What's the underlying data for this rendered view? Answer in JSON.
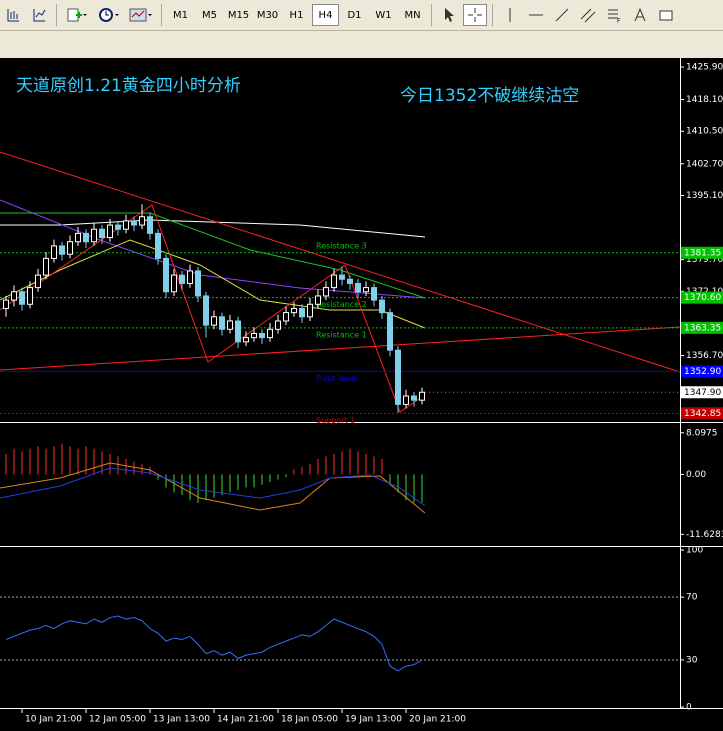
{
  "toolbar": {
    "timeframes": [
      "M1",
      "M5",
      "M15",
      "M30",
      "H1",
      "H4",
      "D1",
      "W1",
      "MN"
    ],
    "active": "H4"
  },
  "annotations": [
    {
      "text": "天道原创1.21黄金四小时分析"
    },
    {
      "text": "今日1352不破继续沽空"
    }
  ],
  "chart_data": {
    "type": "candlestick",
    "bull_color": "#ffffff",
    "bear_color": "#7fd0e8",
    "ylim": [
      1341.25,
      1428.06
    ],
    "yticks": [
      {
        "value": 1425.9,
        "label": "1425.90"
      },
      {
        "value": 1418.1,
        "label": "1418.10"
      },
      {
        "value": 1410.5,
        "label": "1410.50"
      },
      {
        "value": 1402.7,
        "label": "1402.70"
      },
      {
        "value": 1395.1,
        "label": "1395.10"
      },
      {
        "value": 1379.7,
        "label": "1379.70"
      },
      {
        "value": 1372.1,
        "label": "1372.10"
      },
      {
        "value": 1356.7,
        "label": "1356.70"
      }
    ],
    "levels": [
      {
        "name": "Resistance 3",
        "value": 1381.35,
        "label": "1381.35",
        "color": "#00c000",
        "dashed": true
      },
      {
        "name": "Resistance 2",
        "value": 1370.6,
        "label": "1370.60",
        "color": "#00c000",
        "dashed": true
      },
      {
        "name": "Resistance 1",
        "value": 1363.35,
        "label": "1363.35",
        "color": "#00c000",
        "dashed": true
      },
      {
        "name": "Pivot level",
        "value": 1352.9,
        "label": "1352.90",
        "color": "#0000ff",
        "dashed": false
      },
      {
        "name": "Support 1",
        "value": 1342.85,
        "label": "1342.85",
        "color": "#c00000",
        "dashed": true
      }
    ],
    "current_price": {
      "value": 1347.9,
      "label": "1347.90"
    },
    "categories": [
      null,
      null,
      "10 Jan 21:00",
      null,
      null,
      null,
      null,
      null,
      null,
      null,
      "12 Jan 05:00",
      null,
      null,
      null,
      null,
      null,
      null,
      null,
      "13 Jan 13:00",
      null,
      null,
      null,
      null,
      null,
      null,
      null,
      "14 Jan 21:00",
      null,
      null,
      null,
      null,
      null,
      null,
      null,
      "18 Jan 05:00",
      null,
      null,
      null,
      null,
      null,
      null,
      null,
      "19 Jan 13:00",
      null,
      null,
      null,
      null,
      null,
      null,
      null,
      "20 Jan 21:00",
      null,
      null
    ],
    "candles": [
      [
        1368,
        1371,
        1366,
        1370
      ],
      [
        1370,
        1373.5,
        1368.5,
        1372
      ],
      [
        1372,
        1373,
        1367.5,
        1369
      ],
      [
        1369,
        1374.5,
        1368,
        1373
      ],
      [
        1373,
        1377.5,
        1372,
        1376
      ],
      [
        1376,
        1381.5,
        1375,
        1380
      ],
      [
        1380,
        1384.5,
        1379,
        1383
      ],
      [
        1383,
        1384,
        1379.5,
        1381
      ],
      [
        1381,
        1385.5,
        1380,
        1384
      ],
      [
        1384,
        1387.5,
        1383,
        1386
      ],
      [
        1386,
        1387,
        1382.5,
        1384
      ],
      [
        1384,
        1388.5,
        1383,
        1387
      ],
      [
        1387,
        1388,
        1383.5,
        1385
      ],
      [
        1385,
        1389.5,
        1384,
        1388
      ],
      [
        1388,
        1389,
        1385.5,
        1387
      ],
      [
        1387,
        1390.5,
        1386,
        1389
      ],
      [
        1389,
        1390,
        1386.5,
        1388
      ],
      [
        1388,
        1393,
        1387,
        1390
      ],
      [
        1390,
        1391,
        1384.5,
        1386
      ],
      [
        1386,
        1387,
        1378.5,
        1380
      ],
      [
        1380,
        1381,
        1370.5,
        1372
      ],
      [
        1372,
        1377.5,
        1371,
        1376
      ],
      [
        1376,
        1377,
        1372.5,
        1374
      ],
      [
        1374,
        1378.5,
        1373,
        1377
      ],
      [
        1377,
        1378,
        1369.5,
        1371
      ],
      [
        1371,
        1372,
        1361,
        1364
      ],
      [
        1364,
        1367.5,
        1363,
        1366
      ],
      [
        1366,
        1367,
        1361.5,
        1363
      ],
      [
        1363,
        1366.5,
        1362,
        1365
      ],
      [
        1365,
        1366,
        1358.5,
        1360
      ],
      [
        1360,
        1362.5,
        1359,
        1361
      ],
      [
        1361,
        1363.5,
        1360,
        1362
      ],
      [
        1362,
        1363,
        1359.5,
        1361
      ],
      [
        1361,
        1364.5,
        1360,
        1363
      ],
      [
        1363,
        1366.5,
        1362,
        1365
      ],
      [
        1365,
        1368.5,
        1364,
        1367
      ],
      [
        1367,
        1369.5,
        1366,
        1368
      ],
      [
        1368,
        1369,
        1364.5,
        1366
      ],
      [
        1366,
        1370.5,
        1365,
        1369
      ],
      [
        1369,
        1372.5,
        1368,
        1371
      ],
      [
        1371,
        1374.5,
        1370,
        1373
      ],
      [
        1373,
        1377.5,
        1372,
        1376
      ],
      [
        1376,
        1378,
        1373.5,
        1375
      ],
      [
        1375,
        1376,
        1372.5,
        1374
      ],
      [
        1374,
        1375,
        1370.5,
        1372
      ],
      [
        1372,
        1374.5,
        1371,
        1373
      ],
      [
        1373,
        1374,
        1368.5,
        1370
      ],
      [
        1370,
        1371,
        1365.5,
        1367
      ],
      [
        1367,
        1368,
        1356.5,
        1358
      ],
      [
        1358,
        1359,
        1343,
        1345
      ],
      [
        1345,
        1348.5,
        1344,
        1347
      ],
      [
        1347,
        1348,
        1344.5,
        1346
      ],
      [
        1346,
        1349,
        1345,
        1347.9
      ]
    ],
    "macd": {
      "ylim": [
        -13.7,
        9.8
      ],
      "yticks": [
        8.0975,
        {
          "value": 0,
          "label": "0.00"
        },
        -11.6283
      ],
      "up_color": "#ff3030",
      "down_color": "#30e030",
      "values": [
        4,
        5,
        4.5,
        5,
        5.5,
        5,
        5.5,
        6,
        5.5,
        5,
        5.5,
        5,
        4.5,
        4,
        3.5,
        3,
        2.5,
        2,
        1.5,
        -1,
        -2.5,
        -3.5,
        -4,
        -5,
        -5.5,
        -5,
        -4.5,
        -4,
        -3.5,
        -3,
        -2.5,
        -2.5,
        -2,
        -1.5,
        -1,
        -0.5,
        1,
        1.5,
        2,
        3,
        3.5,
        4,
        4.5,
        5,
        4.5,
        4,
        3.5,
        3,
        -2,
        -3.5,
        -5,
        -5.5,
        -5.5
      ]
    },
    "rsi": {
      "ylim": [
        -0.6,
        101.3
      ],
      "yticks": [
        0,
        30,
        70,
        100
      ],
      "levels": [
        70,
        30
      ],
      "color": "#3070ff",
      "values": [
        43,
        45,
        47,
        49,
        50,
        52,
        50,
        53,
        55,
        54,
        53,
        56,
        54,
        57,
        58,
        56,
        57,
        55,
        50,
        47,
        42,
        44,
        43,
        45,
        40,
        34,
        36,
        33,
        35,
        31,
        33,
        34,
        35,
        38,
        40,
        42,
        44,
        46,
        45,
        48,
        52,
        56,
        54,
        52,
        50,
        48,
        45,
        40,
        26,
        23,
        26,
        27,
        30
      ]
    }
  }
}
